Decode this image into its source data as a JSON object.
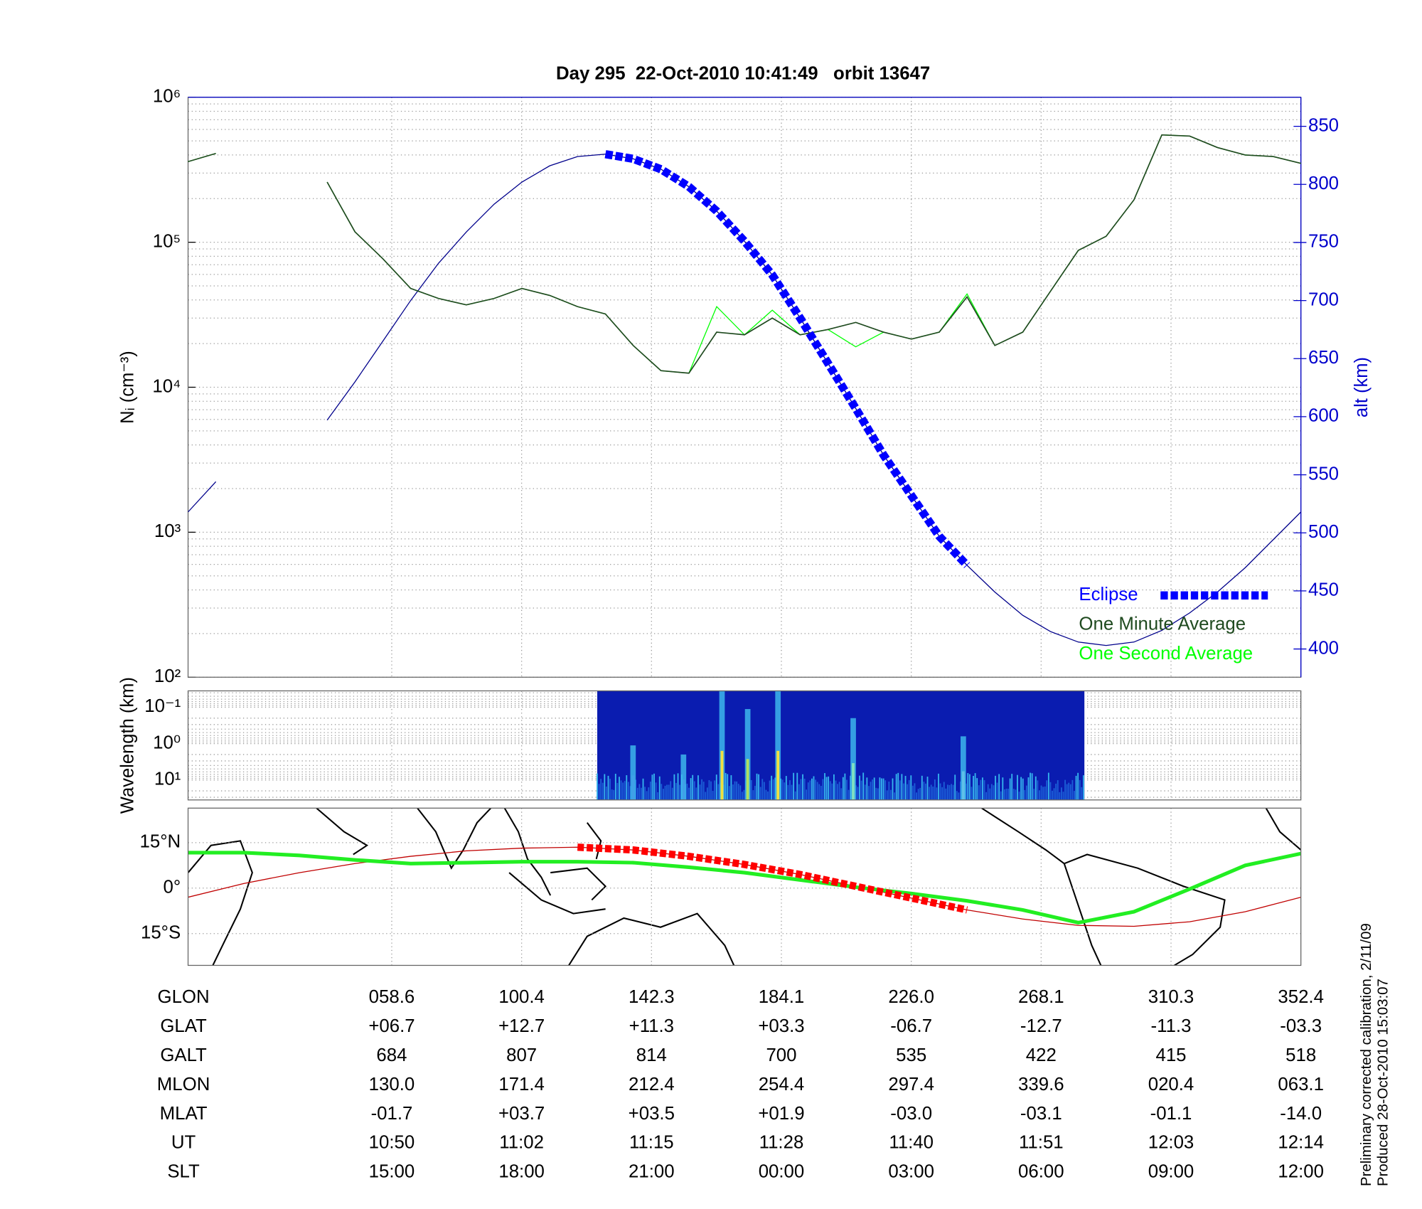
{
  "chart_data": [
    {
      "type": "line",
      "title": "Day 295  22-Oct-2010 10:41:49   orbit 13647",
      "ylabel": "Nᵢ (cm⁻³)",
      "y2label": "alt (km)",
      "log_y": true,
      "ylim": [
        100,
        1000000
      ],
      "yticks": [
        {
          "value": 100,
          "label": "10²"
        },
        {
          "value": 1000,
          "label": "10³"
        },
        {
          "value": 10000,
          "label": "10⁴"
        },
        {
          "value": 100000,
          "label": "10⁵"
        },
        {
          "value": 1000000,
          "label": "10⁶"
        }
      ],
      "y2lim": [
        375.7,
        875
      ],
      "y2ticks": [
        400,
        450,
        500,
        550,
        600,
        650,
        700,
        750,
        800,
        850
      ],
      "grid": true,
      "legend": "lower right",
      "series": [
        {
          "name": "Eclipse",
          "color": "#0000ff",
          "axis": "y2",
          "marker": "square",
          "values": [
            null,
            null,
            null,
            null,
            null,
            null,
            null,
            null,
            null,
            null,
            null,
            null,
            null,
            null,
            null,
            826,
            822,
            813,
            798,
            777,
            751,
            722,
            685,
            646,
            607,
            567,
            532,
            497,
            472,
            null,
            null,
            null,
            null,
            null,
            null,
            null,
            null,
            null,
            null,
            null,
            null
          ]
        },
        {
          "name": "One Minute Average",
          "color": "#1f4a1f",
          "values": [
            360000,
            410000,
            null,
            null,
            null,
            260000,
            118000,
            77000,
            48000,
            41000,
            37000,
            41000,
            48000,
            43000,
            36000,
            32000,
            19400,
            13000,
            12500,
            24000,
            23000,
            30000,
            23000,
            25000,
            28000,
            24000,
            21500,
            24000,
            42000,
            19400,
            24000,
            46000,
            88000,
            110000,
            196000,
            550000,
            540000,
            450000,
            400000,
            390000,
            350000
          ]
        },
        {
          "name": "One Second Average",
          "color": "#00ff00",
          "values": [
            360000,
            410000,
            null,
            null,
            null,
            260000,
            118000,
            77000,
            48000,
            41000,
            37000,
            41000,
            48000,
            43000,
            36000,
            32000,
            19400,
            13000,
            12500,
            36000,
            23000,
            34000,
            23000,
            25000,
            19000,
            24000,
            21500,
            24000,
            44000,
            19400,
            24000,
            46000,
            88000,
            110000,
            196000,
            550000,
            540000,
            450000,
            400000,
            390000,
            350000
          ]
        },
        {
          "color": "#00008b",
          "axis": "y2",
          "values": [
            518,
            544,
            null,
            null,
            null,
            597,
            630,
            665,
            700,
            732,
            759,
            783,
            802,
            816,
            824,
            826,
            822,
            813,
            798,
            777,
            751,
            722,
            685,
            646,
            607,
            567,
            532,
            497,
            472,
            449,
            429,
            415,
            406,
            403,
            406,
            416,
            431,
            449,
            470,
            494,
            518
          ]
        }
      ]
    },
    {
      "type": "spectrogram",
      "ylabel": "Wavelength (km)",
      "log_y": true,
      "ylim": [
        35.5,
        0.0355
      ],
      "yticks": [
        {
          "value": 0.1,
          "label": "10⁻¹"
        },
        {
          "value": 1,
          "label": "10⁰"
        },
        {
          "value": 10,
          "label": "10¹"
        }
      ]
    },
    {
      "type": "map",
      "ylim": [
        -25.5,
        26.4
      ],
      "yticks": [
        {
          "value": 15,
          "label": "15°N"
        },
        {
          "value": 0,
          "label": "0°"
        },
        {
          "value": -15,
          "label": "15°S"
        }
      ],
      "series": [
        {
          "color": "#c00000",
          "values": [
            -3.0,
            1.5,
            5.1,
            8.1,
            10.5,
            12.3,
            13.2,
            13.5,
            12.6,
            10.5,
            7.8,
            4.5,
            0.6,
            -3.3,
            -7.2,
            -10.2,
            -12.3,
            -12.6,
            -11.1,
            -7.8,
            -3.0
          ]
        },
        {
          "color": "#22ee22",
          "values": [
            11.7,
            11.7,
            10.8,
            9.3,
            8.1,
            8.4,
            8.7,
            8.7,
            8.4,
            6.9,
            5.1,
            2.7,
            0.3,
            -1.8,
            -4.2,
            -7.2,
            -11.4,
            -7.8,
            -0.3,
            7.5,
            11.4
          ]
        },
        {
          "color": "#ff0000",
          "marker": "square",
          "values": [
            null,
            null,
            null,
            null,
            null,
            null,
            null,
            13.5,
            12.6,
            10.5,
            7.8,
            4.5,
            0.6,
            -3.3,
            -7.2,
            null,
            null,
            null,
            null,
            null,
            null
          ]
        }
      ]
    }
  ],
  "table": {
    "rows": [
      {
        "label": "GLON",
        "values": [
          "058.6",
          "100.4",
          "142.3",
          "184.1",
          "226.0",
          "268.1",
          "310.3",
          "352.4"
        ]
      },
      {
        "label": "GLAT",
        "values": [
          "+06.7",
          "+12.7",
          "+11.3",
          "+03.3",
          "-06.7",
          "-12.7",
          "-11.3",
          "-03.3"
        ]
      },
      {
        "label": "GALT",
        "values": [
          "684",
          "807",
          "814",
          "700",
          "535",
          "422",
          "415",
          "518"
        ]
      },
      {
        "label": "MLON",
        "values": [
          "130.0",
          "171.4",
          "212.4",
          "254.4",
          "297.4",
          "339.6",
          "020.4",
          "063.1"
        ]
      },
      {
        "label": "MLAT",
        "values": [
          "-01.7",
          "+03.7",
          "+03.5",
          "+01.9",
          "-03.0",
          "-03.1",
          "-01.1",
          "-14.0"
        ]
      },
      {
        "label": "UT",
        "values": [
          "10:50",
          "11:02",
          "11:15",
          "11:28",
          "11:40",
          "11:51",
          "12:03",
          "12:14"
        ]
      },
      {
        "label": "SLT",
        "values": [
          "15:00",
          "18:00",
          "21:00",
          "00:00",
          "03:00",
          "06:00",
          "09:00",
          "12:00"
        ]
      }
    ]
  },
  "notes": [
    "Preliminary corrected calibration, 2/11/09",
    "Produced 28-Oct-2010 15:03:07"
  ]
}
